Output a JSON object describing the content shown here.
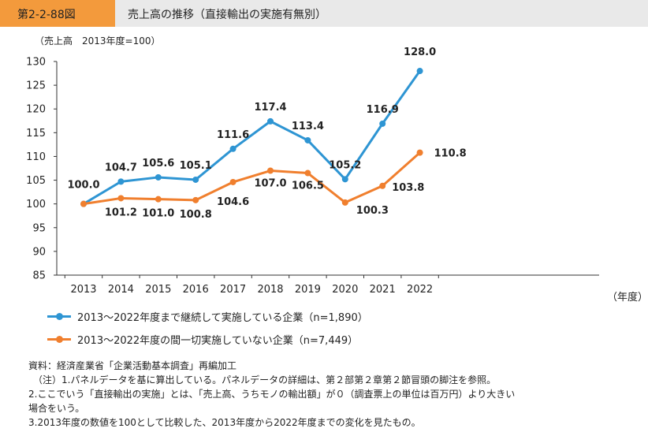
{
  "header": {
    "tag": "第2-2-88図",
    "title": "売上高の推移（直接輸出の実施有無別）"
  },
  "unit_note": "（売上高　2013年度=100）",
  "colors": {
    "series1": "#2e95d3",
    "series2": "#f07f2e",
    "header_tag": "#f39a3c",
    "header_bg": "#e9e9e9",
    "axis": "#333333"
  },
  "chart_data": {
    "type": "line",
    "x": [
      "2013",
      "2014",
      "2015",
      "2016",
      "2017",
      "2018",
      "2019",
      "2020",
      "2021",
      "2022"
    ],
    "xlabel": "（年度）",
    "ylabel": "",
    "ylim": [
      85,
      130
    ],
    "yticks": [
      85,
      90,
      95,
      100,
      105,
      110,
      115,
      120,
      125,
      130
    ],
    "grid": false,
    "legend_position": "bottom",
    "series": [
      {
        "name": "2013～2022年度まで継続して実施している企業（n=1,890）",
        "values": [
          100.0,
          104.7,
          105.6,
          105.1,
          111.6,
          117.4,
          113.4,
          105.2,
          116.9,
          128.0
        ],
        "labels": [
          "100.0",
          "104.7",
          "105.6",
          "105.1",
          "111.6",
          "117.4",
          "113.4",
          "105.2",
          "116.9",
          "128.0"
        ]
      },
      {
        "name": "2013～2022年度の間一切実施していない企業（n=7,449）",
        "values": [
          100.0,
          101.2,
          101.0,
          100.8,
          104.6,
          107.0,
          106.5,
          100.3,
          103.8,
          110.8
        ],
        "labels": [
          "",
          "101.2",
          "101.0",
          "100.8",
          "104.6",
          "107.0",
          "106.5",
          "100.3",
          "103.8",
          "110.8"
        ]
      }
    ]
  },
  "notes": [
    "資料：経済産業省「企業活動基本調査」再編加工",
    "（注）1.パネルデータを基に算出している。パネルデータの詳細は、第２部第２章第２節冒頭の脚注を参照。",
    "2.ここでいう「直接輸出の実施」とは、「売上高、うちモノの輸出額」が０（調査票上の単位は百万円）より大きい",
    "場合をいう。",
    "3.2013年度の数値を100として比較した、2013年度から2022年度までの変化を見たもの。"
  ]
}
